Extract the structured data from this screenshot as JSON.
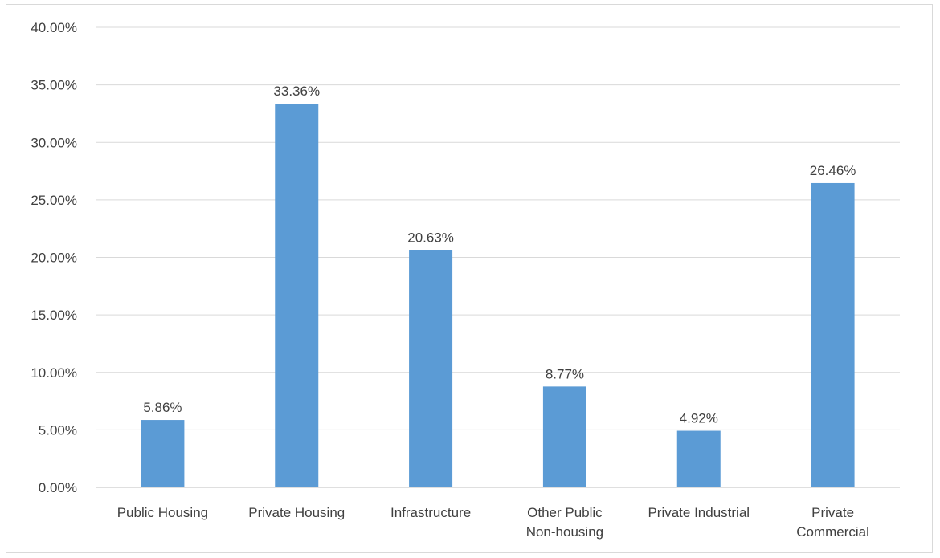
{
  "chart_data": {
    "type": "bar",
    "title": "",
    "xlabel": "",
    "ylabel": "",
    "categories": [
      [
        "Public Housing"
      ],
      [
        "Private Housing"
      ],
      [
        "Infrastructure"
      ],
      [
        "Other Public",
        "Non-housing"
      ],
      [
        "Private Industrial"
      ],
      [
        "Private",
        "Commercial"
      ]
    ],
    "values": [
      5.86,
      33.36,
      20.63,
      8.77,
      4.92,
      26.46
    ],
    "data_labels": [
      "5.86%",
      "33.36%",
      "20.63%",
      "8.77%",
      "4.92%",
      "26.46%"
    ],
    "ylim": [
      0,
      40
    ],
    "yticks": [
      0,
      5,
      10,
      15,
      20,
      25,
      30,
      35,
      40
    ],
    "ytick_labels": [
      "0.00%",
      "5.00%",
      "10.00%",
      "15.00%",
      "20.00%",
      "25.00%",
      "30.00%",
      "35.00%",
      "40.00%"
    ],
    "grid": true,
    "legend": "none",
    "colors": {
      "bar": "#5b9bd5",
      "grid": "#d9d9d9",
      "text": "#404040",
      "axis": "#bfbfbf"
    }
  }
}
